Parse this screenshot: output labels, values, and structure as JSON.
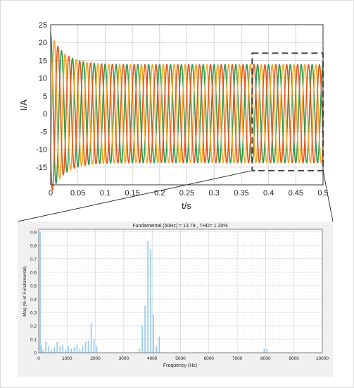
{
  "chart_data": [
    {
      "type": "line",
      "title": "",
      "xlabel": "t/s",
      "ylabel": "I/A",
      "xlim": [
        0,
        0.5
      ],
      "ylim": [
        -20,
        25
      ],
      "x_ticks": [
        "0",
        "0.05",
        "0.1",
        "0.15",
        "0.2",
        "0.25",
        "0.3",
        "0.35",
        "0.4",
        "0.45",
        "0.5"
      ],
      "y_ticks": [
        "25",
        "20",
        "15",
        "10",
        "5",
        "0",
        "-5",
        "-10",
        "-15"
      ],
      "grid": true,
      "signal": {
        "frequency_hz": 50,
        "amplitude_steady": 13.79,
        "startup_peak": 22.5,
        "startup_decay_s": 0.025
      },
      "series": [
        {
          "phase_deg": 90,
          "color": "#2e9a4a"
        },
        {
          "phase_deg": -30,
          "color": "#f5a623"
        },
        {
          "phase_deg": 210,
          "color": "#e8571e"
        }
      ],
      "zoom_box": {
        "x_range": [
          0.37,
          0.5
        ],
        "y_range": [
          -16,
          17
        ]
      }
    },
    {
      "type": "bar",
      "title": "Fundamental (50Hz) = 13.79 , THD= 1.20%",
      "xlabel": "Frequency (Hz)",
      "ylabel": "Mag (% of Fundamental)",
      "xlim": [
        0,
        10000
      ],
      "ylim": [
        0,
        0.92
      ],
      "x_ticks": [
        "0",
        "1000",
        "2000",
        "3000",
        "4000",
        "5000",
        "6000",
        "7000",
        "8000",
        "9000",
        "10000"
      ],
      "y_ticks": [
        "0.9",
        "0.8",
        "0.7",
        "0.6",
        "0.5",
        "0.4",
        "0.3",
        "0.2",
        "0.1",
        "0"
      ],
      "grid": true,
      "bar_color": "#8ec9f0",
      "x": [
        50,
        100,
        150,
        250,
        350,
        450,
        550,
        650,
        750,
        850,
        950,
        1050,
        1150,
        1250,
        1350,
        1450,
        1550,
        1650,
        1750,
        1850,
        1950,
        2050,
        3550,
        3650,
        3750,
        3850,
        3950,
        4050,
        4150,
        4250,
        7950,
        8050
      ],
      "values": [
        0.9,
        0.05,
        0.02,
        0.08,
        0.05,
        0.03,
        0.04,
        0.08,
        0.05,
        0.06,
        0.02,
        0.05,
        0.03,
        0.04,
        0.06,
        0.03,
        0.05,
        0.08,
        0.09,
        0.22,
        0.1,
        0.05,
        0.03,
        0.2,
        0.35,
        0.83,
        0.77,
        0.28,
        0.05,
        0.12,
        0.03,
        0.03
      ]
    }
  ]
}
